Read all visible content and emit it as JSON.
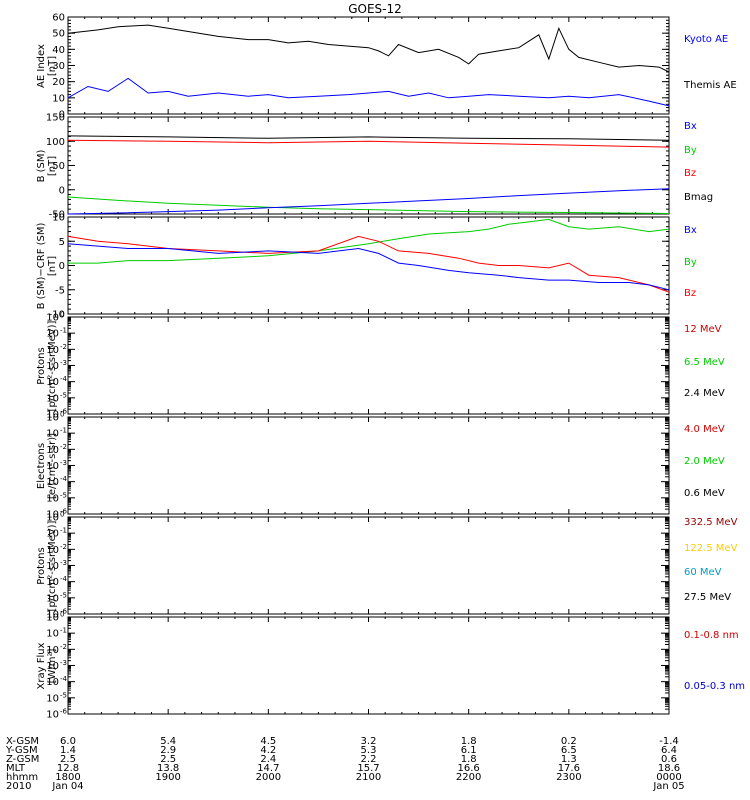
{
  "title": "GOES-12",
  "chart_data": [
    {
      "type": "line",
      "panel": "AE index",
      "ylabel": [
        "AE Index",
        "[nT]"
      ],
      "ylim": [
        0,
        60
      ],
      "yticks": [
        "0",
        "10",
        "20",
        "30",
        "40",
        "50",
        "60"
      ],
      "legend": [
        {
          "label": "Kyoto AE",
          "color": "#0000ff"
        },
        {
          "label": "Themis AE",
          "color": "#000000"
        }
      ],
      "series": [
        {
          "color": "#000000",
          "x": [
            0,
            0.3,
            0.5,
            0.8,
            1,
            1.2,
            1.5,
            1.8,
            2,
            2.2,
            2.4,
            2.6,
            2.8,
            3,
            3.1,
            3.2,
            3.3,
            3.5,
            3.7,
            3.9,
            4,
            4.1,
            4.3,
            4.5,
            4.7,
            4.8,
            4.9,
            5,
            5.1,
            5.3,
            5.5,
            5.7,
            5.9,
            6
          ],
          "y": [
            50,
            52,
            54,
            55,
            53,
            51,
            48,
            46,
            46,
            44,
            45,
            43,
            42,
            41,
            39,
            36,
            43,
            38,
            40,
            35,
            31,
            37,
            39,
            41,
            49,
            34,
            53,
            40,
            35,
            32,
            29,
            30,
            29,
            26
          ]
        },
        {
          "color": "#0000ff",
          "x": [
            0,
            0.2,
            0.4,
            0.6,
            0.8,
            1,
            1.2,
            1.5,
            1.8,
            2,
            2.2,
            2.5,
            2.8,
            3,
            3.2,
            3.4,
            3.6,
            3.8,
            4,
            4.2,
            4.5,
            4.8,
            5,
            5.2,
            5.5,
            5.8,
            6
          ],
          "y": [
            10,
            17,
            14,
            22,
            13,
            14,
            11,
            13,
            11,
            12,
            10,
            11,
            12,
            13,
            14,
            11,
            13,
            10,
            11,
            12,
            11,
            10,
            11,
            10,
            12,
            8,
            5
          ]
        }
      ]
    },
    {
      "type": "line",
      "panel": "B (SM)",
      "ylabel": [
        "B (SM)",
        "[nT]"
      ],
      "ylim": [
        -50,
        150
      ],
      "yticks": [
        "-50",
        "0",
        "50",
        "100",
        "150"
      ],
      "legend": [
        {
          "label": "Bx",
          "color": "#0000ff"
        },
        {
          "label": "By",
          "color": "#00cc00"
        },
        {
          "label": "Bz",
          "color": "#ff0000"
        },
        {
          "label": "Bmag",
          "color": "#000000"
        }
      ],
      "series": [
        {
          "color": "#000000",
          "x": [
            0,
            1,
            2,
            3,
            4,
            5,
            6
          ],
          "y": [
            111,
            109,
            106,
            109,
            106,
            105,
            102
          ]
        },
        {
          "color": "#ff0000",
          "x": [
            0,
            1,
            2,
            3,
            4,
            5,
            6
          ],
          "y": [
            102,
            100,
            97,
            100,
            96,
            92,
            88
          ]
        },
        {
          "color": "#00cc00",
          "x": [
            0,
            0.5,
            1,
            1.5,
            2,
            2.5,
            3,
            3.5,
            4,
            4.5,
            5,
            5.5,
            6
          ],
          "y": [
            -15,
            -22,
            -28,
            -32,
            -36,
            -39,
            -41,
            -43,
            -45,
            -46,
            -47,
            -48,
            -49
          ]
        },
        {
          "color": "#0000ff",
          "x": [
            0,
            0.5,
            1,
            1.5,
            2,
            2.5,
            3,
            3.5,
            4,
            4.5,
            5,
            5.5,
            6
          ],
          "y": [
            -50,
            -48,
            -45,
            -42,
            -37,
            -33,
            -28,
            -23,
            -18,
            -12,
            -7,
            -2,
            2
          ]
        }
      ]
    },
    {
      "type": "line",
      "panel": "B (SM) - CRF (SM)",
      "ylabel": [
        "B (SM)−CRF (SM)",
        "[nT]"
      ],
      "ylim": [
        -10,
        10
      ],
      "yticks": [
        "-10",
        "-5",
        "0",
        "5",
        "10"
      ],
      "legend": [
        {
          "label": "Bx",
          "color": "#0000ff"
        },
        {
          "label": "By",
          "color": "#00cc00"
        },
        {
          "label": "Bz",
          "color": "#ff0000"
        }
      ],
      "series": [
        {
          "color": "#00cc00",
          "x": [
            0,
            0.3,
            0.6,
            1,
            1.5,
            2,
            2.5,
            3,
            3.3,
            3.6,
            4,
            4.2,
            4.4,
            4.6,
            4.8,
            5,
            5.2,
            5.5,
            5.8,
            6
          ],
          "y": [
            0.5,
            0.5,
            1,
            1,
            1.5,
            2,
            3,
            4.5,
            5.5,
            6.5,
            7,
            7.5,
            8.5,
            9,
            9.5,
            8,
            7.5,
            8,
            7,
            7.5
          ]
        },
        {
          "color": "#ff0000",
          "x": [
            0,
            0.3,
            0.6,
            1,
            1.5,
            2,
            2.5,
            2.9,
            3.1,
            3.3,
            3.6,
            3.9,
            4.1,
            4.3,
            4.5,
            4.8,
            5,
            5.2,
            5.5,
            5.8,
            6
          ],
          "y": [
            6,
            5,
            4.5,
            3.5,
            3,
            2.5,
            3,
            6,
            5,
            3,
            2.5,
            1.5,
            0.5,
            0,
            0,
            -0.5,
            0.5,
            -2,
            -2.5,
            -4,
            -5.5
          ]
        },
        {
          "color": "#0000ff",
          "x": [
            0,
            0.3,
            0.6,
            1,
            1.5,
            2,
            2.5,
            2.9,
            3.1,
            3.3,
            3.5,
            3.8,
            4,
            4.3,
            4.5,
            4.8,
            5,
            5.3,
            5.6,
            5.8,
            6
          ],
          "y": [
            4.5,
            4,
            3.5,
            3.5,
            2.5,
            3,
            2.5,
            3.5,
            2.5,
            0.5,
            0,
            -1,
            -1.5,
            -2,
            -2.5,
            -3,
            -3,
            -3.5,
            -3.5,
            -4,
            -5
          ]
        }
      ]
    },
    {
      "type": "line",
      "panel": "Protons (energetic)",
      "ylabel": [
        "Protons",
        "[p/(cm²-s-sr-MeV)]"
      ],
      "ylim_log10": [
        -6,
        0
      ],
      "ytick_exponents": [
        "0",
        "-1",
        "-2",
        "-3",
        "-4",
        "-5",
        "-6"
      ],
      "legend": [
        {
          "label": "12 MeV",
          "color": "#cc0000"
        },
        {
          "label": "6.5 MeV",
          "color": "#00cc00"
        },
        {
          "label": "2.4 MeV",
          "color": "#000000"
        }
      ],
      "series": []
    },
    {
      "type": "line",
      "panel": "Electrons",
      "ylabel": [
        "Electrons",
        "[e/(cm²-s-sr)]"
      ],
      "ylim_log10": [
        -6,
        0
      ],
      "ytick_exponents": [
        "0",
        "-1",
        "-2",
        "-3",
        "-4",
        "-5",
        "-6"
      ],
      "legend": [
        {
          "label": "4.0 MeV",
          "color": "#cc0000"
        },
        {
          "label": "2.0 MeV",
          "color": "#00cc00"
        },
        {
          "label": "0.6 MeV",
          "color": "#000000"
        }
      ],
      "series": []
    },
    {
      "type": "line",
      "panel": "Protons (high energy)",
      "ylabel": [
        "Protons",
        "[p/(cm²-s-sr-MeV)]"
      ],
      "ylim_log10": [
        -6,
        0
      ],
      "ytick_exponents": [
        "0",
        "-1",
        "-2",
        "-3",
        "-4",
        "-5",
        "-6"
      ],
      "legend": [
        {
          "label": "332.5 MeV",
          "color": "#990000"
        },
        {
          "label": "122.5 MeV",
          "color": "#ffcc00"
        },
        {
          "label": "60 MeV",
          "color": "#0099cc"
        },
        {
          "label": "27.5 MeV",
          "color": "#000000"
        }
      ],
      "series": []
    },
    {
      "type": "line",
      "panel": "Xray Flux",
      "ylabel": [
        "Xray Flux",
        "[W/m²]"
      ],
      "ylim_log10": [
        -6,
        0
      ],
      "ytick_exponents": [
        "0",
        "-1",
        "-2",
        "-3",
        "-4",
        "-5",
        "-6"
      ],
      "legend": [
        {
          "label": "0.1-0.8 nm",
          "color": "#cc0000"
        },
        {
          "label": "0.05-0.3 nm",
          "color": "#0000cc"
        }
      ],
      "series": []
    }
  ],
  "ephemeris": {
    "labels": [
      "X-GSM",
      "Y-GSM",
      "Z-GSM",
      "MLT",
      "hhmm",
      "2010"
    ],
    "columns": [
      [
        "6.0",
        "1.4",
        "2.5",
        "12.8",
        "1800",
        "Jan 04"
      ],
      [
        "5.4",
        "2.9",
        "2.5",
        "13.8",
        "1900",
        ""
      ],
      [
        "4.5",
        "4.2",
        "2.4",
        "14.7",
        "2000",
        ""
      ],
      [
        "3.2",
        "5.3",
        "2.2",
        "15.7",
        "2100",
        ""
      ],
      [
        "1.8",
        "6.1",
        "1.8",
        "16.6",
        "2200",
        ""
      ],
      [
        "0.2",
        "6.5",
        "1.3",
        "17.6",
        "2300",
        ""
      ],
      [
        "-1.4",
        "6.4",
        "0.6",
        "18.6",
        "0000",
        "Jan 05"
      ]
    ]
  }
}
